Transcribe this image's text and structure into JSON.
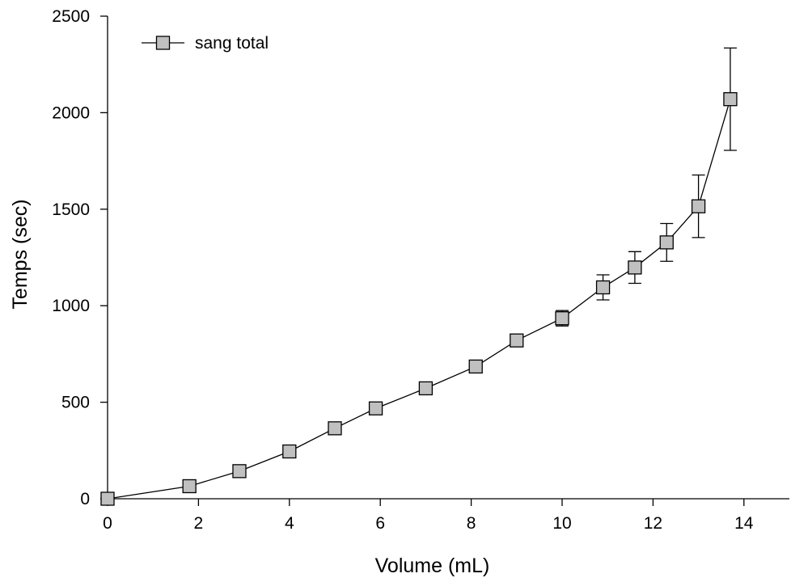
{
  "chart_data": {
    "type": "line",
    "title": "",
    "xlabel": "Volume (mL)",
    "ylabel": "Temps (sec)",
    "xlim": [
      0,
      15
    ],
    "ylim": [
      0,
      2500
    ],
    "xticks": [
      0,
      2,
      4,
      6,
      8,
      10,
      12,
      14
    ],
    "yticks": [
      0,
      500,
      1000,
      1500,
      2000,
      2500
    ],
    "grid": false,
    "legend_position": "top-left",
    "marker": "square",
    "marker_color": "#c0c0c0",
    "line_color": "#000000",
    "series": [
      {
        "name": "sang total",
        "x": [
          0,
          1.8,
          2.9,
          4.0,
          5.0,
          5.9,
          7.0,
          8.1,
          9.0,
          10.0,
          10.9,
          11.6,
          12.3,
          13.0,
          13.7
        ],
        "y": [
          0,
          65,
          143,
          245,
          365,
          468,
          572,
          685,
          820,
          935,
          1095,
          1198,
          1328,
          1515,
          2070
        ],
        "err": [
          0,
          0,
          0,
          0,
          0,
          0,
          0,
          0,
          0,
          40,
          65,
          82,
          98,
          162,
          265
        ]
      }
    ]
  }
}
